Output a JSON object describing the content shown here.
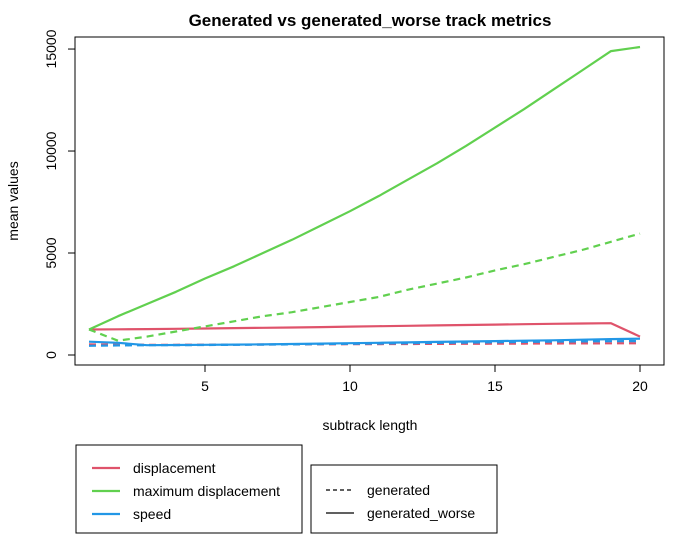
{
  "chart_data": {
    "type": "line",
    "title": "Generated vs generated_worse track metrics",
    "xlabel": "subtrack length",
    "ylabel": "mean values",
    "xlim": [
      1,
      20
    ],
    "ylim": [
      0,
      15100
    ],
    "xticks": [
      5,
      10,
      15,
      20
    ],
    "yticks": [
      0,
      5000,
      10000,
      15000
    ],
    "x": [
      1,
      2,
      3,
      4,
      5,
      6,
      7,
      8,
      9,
      10,
      11,
      12,
      13,
      14,
      15,
      16,
      17,
      18,
      19,
      20
    ],
    "series": [
      {
        "metric": "displacement",
        "variant": "generated_worse",
        "color": "#DF536B",
        "dash": "solid",
        "values": [
          1250,
          1260,
          1270,
          1285,
          1300,
          1320,
          1335,
          1350,
          1370,
          1390,
          1410,
          1430,
          1450,
          1470,
          1490,
          1510,
          1530,
          1545,
          1560,
          900
        ]
      },
      {
        "metric": "displacement",
        "variant": "generated",
        "color": "#DF536B",
        "dash": "dashed",
        "values": [
          520,
          510,
          500,
          500,
          505,
          510,
          515,
          520,
          525,
          530,
          535,
          540,
          545,
          550,
          555,
          560,
          565,
          570,
          575,
          580
        ]
      },
      {
        "metric": "maximum displacement",
        "variant": "generated_worse",
        "color": "#61D04F",
        "dash": "solid",
        "values": [
          1250,
          1900,
          2500,
          3100,
          3750,
          4350,
          5000,
          5650,
          6350,
          7050,
          7800,
          8600,
          9400,
          10250,
          11150,
          12050,
          13000,
          13950,
          14900,
          15100
        ]
      },
      {
        "metric": "maximum displacement",
        "variant": "generated",
        "color": "#61D04F",
        "dash": "dashed",
        "values": [
          1250,
          700,
          900,
          1150,
          1400,
          1650,
          1900,
          2100,
          2350,
          2600,
          2850,
          3200,
          3500,
          3800,
          4150,
          4450,
          4800,
          5150,
          5550,
          5950
        ]
      },
      {
        "metric": "speed",
        "variant": "generated_worse",
        "color": "#2297E6",
        "dash": "solid",
        "values": [
          650,
          600,
          480,
          490,
          500,
          510,
          520,
          540,
          560,
          580,
          600,
          620,
          640,
          660,
          680,
          700,
          720,
          750,
          780,
          800
        ]
      },
      {
        "metric": "speed",
        "variant": "generated",
        "color": "#2297E6",
        "dash": "dashed",
        "values": [
          450,
          470,
          480,
          480,
          490,
          500,
          510,
          520,
          535,
          550,
          565,
          580,
          595,
          610,
          625,
          640,
          655,
          665,
          675,
          680
        ]
      }
    ],
    "legend_metrics": [
      {
        "label": "displacement",
        "color": "#DF536B"
      },
      {
        "label": "maximum displacement",
        "color": "#61D04F"
      },
      {
        "label": "speed",
        "color": "#2297E6"
      }
    ],
    "legend_variants": [
      {
        "label": "generated",
        "dash": "dashed"
      },
      {
        "label": "generated_worse",
        "dash": "solid"
      }
    ],
    "legend_placement": "bottom-left",
    "grid": false
  }
}
